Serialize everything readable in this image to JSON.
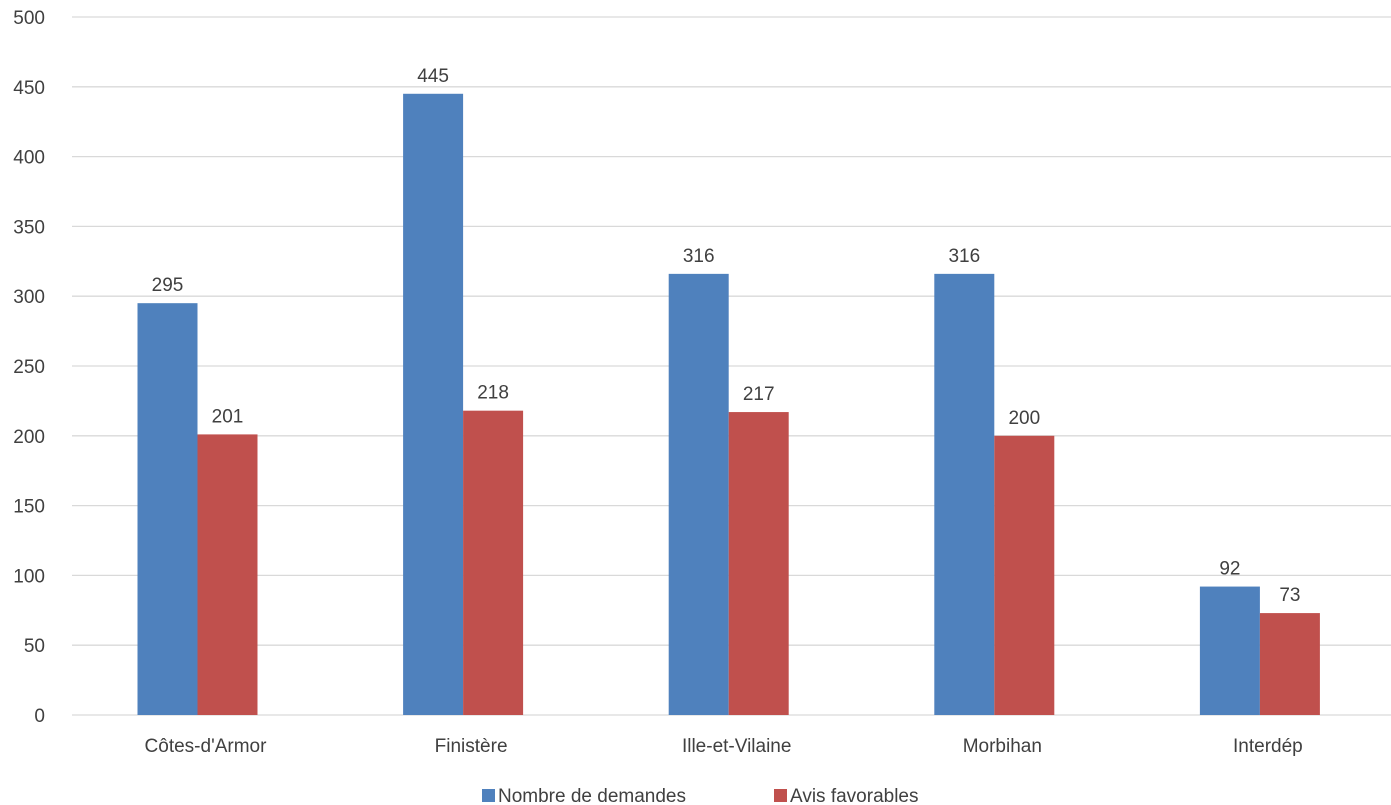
{
  "chart_data": {
    "type": "bar",
    "title": "",
    "xlabel": "",
    "ylabel": "",
    "categories": [
      "Côtes-d'Armor",
      "Finistère",
      "Ille-et-Vilaine",
      "Morbihan",
      "Interdép"
    ],
    "series": [
      {
        "name": "Nombre de demandes",
        "color": "#4f81bd",
        "values": [
          295,
          445,
          316,
          316,
          92
        ]
      },
      {
        "name": "Avis favorables",
        "color": "#c0504d",
        "values": [
          201,
          218,
          217,
          200,
          73
        ]
      }
    ],
    "ylim": [
      0,
      500
    ],
    "yticks": [
      0,
      50,
      100,
      150,
      200,
      250,
      300,
      350,
      400,
      450,
      500
    ],
    "grid": true,
    "legend": "bottom-center",
    "data_labels": true
  }
}
